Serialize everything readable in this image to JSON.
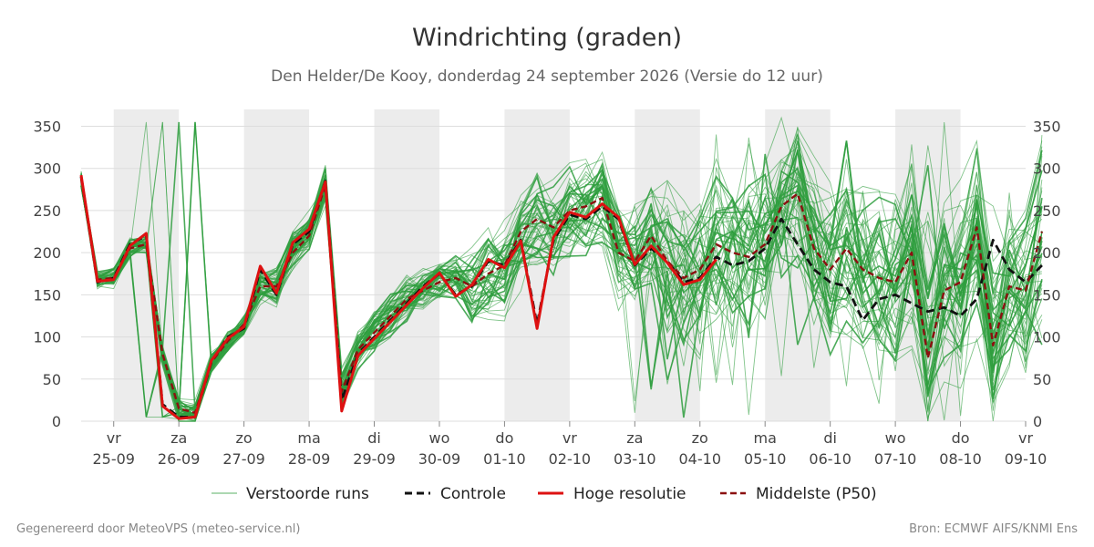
{
  "title": "Windrichting (graden)",
  "subtitle": "Den Helder/De Kooy, donderdag 24 september 2026 (Versie do 12 uur)",
  "footer_left": "Gegenereerd door MeteoVPS (meteo-service.nl)",
  "footer_right": "Bron: ECMWF AIFS/KNMI Ens",
  "colors": {
    "ensemble": "#2e9e3e",
    "control": "#111111",
    "hires": "#dd1111",
    "median": "#8b1010",
    "band": "#ececec",
    "grid": "#dddddd"
  },
  "chart_data": {
    "type": "line",
    "ylim": [
      0,
      370
    ],
    "xlim": [
      0,
      14.5
    ],
    "yticks": [
      0,
      50,
      100,
      150,
      200,
      250,
      300,
      350
    ],
    "x_ticks": [
      {
        "day": "vr",
        "date": "25-09",
        "x": 0.5
      },
      {
        "day": "za",
        "date": "26-09",
        "x": 1.5
      },
      {
        "day": "zo",
        "date": "27-09",
        "x": 2.5
      },
      {
        "day": "ma",
        "date": "28-09",
        "x": 3.5
      },
      {
        "day": "di",
        "date": "29-09",
        "x": 4.5
      },
      {
        "day": "wo",
        "date": "30-09",
        "x": 5.5
      },
      {
        "day": "do",
        "date": "01-10",
        "x": 6.5
      },
      {
        "day": "vr",
        "date": "02-10",
        "x": 7.5
      },
      {
        "day": "za",
        "date": "03-10",
        "x": 8.5
      },
      {
        "day": "zo",
        "date": "04-10",
        "x": 9.5
      },
      {
        "day": "ma",
        "date": "05-10",
        "x": 10.5
      },
      {
        "day": "di",
        "date": "06-10",
        "x": 11.5
      },
      {
        "day": "wo",
        "date": "07-10",
        "x": 12.5
      },
      {
        "day": "do",
        "date": "08-10",
        "x": 13.5
      },
      {
        "day": "vr",
        "date": "09-10",
        "x": 14.5
      }
    ],
    "shaded_days": [
      [
        0.5,
        1.5
      ],
      [
        2.5,
        3.5
      ],
      [
        4.5,
        5.5
      ],
      [
        6.5,
        7.5
      ],
      [
        8.5,
        9.5
      ],
      [
        10.5,
        11.5
      ],
      [
        12.5,
        13.5
      ],
      [
        14.5,
        14.5
      ]
    ],
    "x_step": 0.25,
    "series": [
      {
        "name": "Controle",
        "values": [
          290,
          165,
          170,
          210,
          220,
          20,
          5,
          5,
          70,
          100,
          110,
          180,
          150,
          210,
          225,
          285,
          25,
          80,
          100,
          120,
          140,
          160,
          175,
          150,
          160,
          190,
          185,
          215,
          115,
          215,
          245,
          240,
          255,
          240,
          185,
          205,
          190,
          165,
          170,
          195,
          185,
          190,
          205,
          240,
          210,
          180,
          165,
          160,
          120,
          145,
          150,
          140,
          130,
          135,
          125,
          145,
          215,
          180,
          165,
          185
        ]
      },
      {
        "name": "Hoge resolutie",
        "values": [
          292,
          166,
          168,
          208,
          223,
          18,
          3,
          5,
          72,
          98,
          112,
          184,
          152,
          212,
          228,
          284,
          12,
          78,
          98,
          118,
          138,
          158,
          176,
          148,
          162,
          192,
          182,
          214,
          110,
          218,
          248,
          242,
          258,
          242,
          186,
          208,
          188,
          162,
          168,
          192
        ]
      },
      {
        "name": "Middelste (P50)",
        "values": [
          288,
          168,
          170,
          205,
          210,
          80,
          15,
          10,
          70,
          95,
          115,
          160,
          160,
          200,
          220,
          280,
          35,
          85,
          105,
          125,
          145,
          155,
          165,
          170,
          160,
          175,
          185,
          225,
          240,
          230,
          250,
          255,
          265,
          200,
          190,
          220,
          190,
          170,
          180,
          210,
          200,
          195,
          210,
          255,
          270,
          205,
          180,
          205,
          180,
          170,
          165,
          200,
          75,
          155,
          165,
          230,
          90,
          160,
          155,
          225
        ]
      }
    ],
    "ensemble": {
      "name": "Verstoorde runs",
      "members": 50,
      "spread_growth": "increasing with lead time"
    },
    "legend": [
      "Verstoorde runs",
      "Controle",
      "Hoge resolutie",
      "Middelste (P50)"
    ],
    "legend_position": "bottom"
  }
}
